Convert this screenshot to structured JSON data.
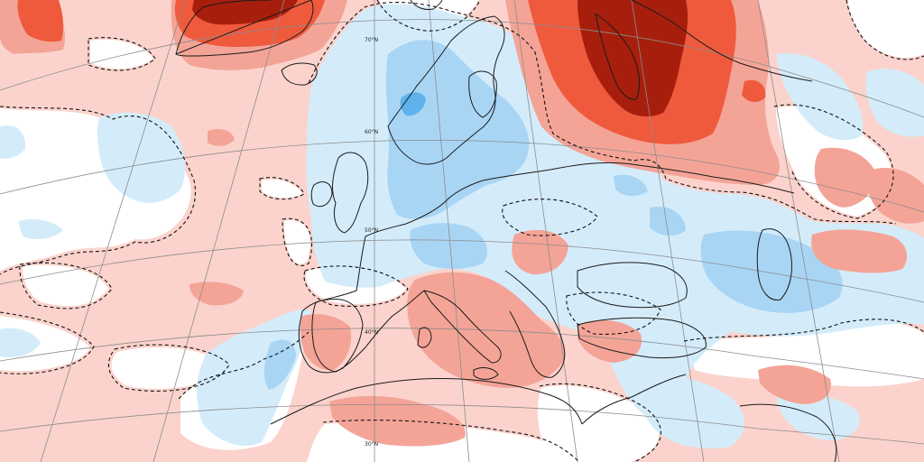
{
  "map": {
    "projection": "lambert-conformal",
    "colors": {
      "ocean_base": "#fbd3cc",
      "neutral": "#ffffff",
      "warm_1": "#fbd3cc",
      "warm_2": "#f4a497",
      "warm_3": "#ef5a3d",
      "warm_4": "#a71f0c",
      "cool_1": "#d4ecfa",
      "cool_2": "#a9d5f5",
      "cool_3": "#5fb2ec",
      "coast": "#1a1a1a",
      "grid": "#8c8c8c",
      "contour_dashed": "#111111"
    },
    "lat_labels": {
      "lat70": "70°N",
      "lat60": "60°N",
      "lat50": "50°N",
      "lat40": "40°N",
      "lat30": "30°N"
    }
  }
}
